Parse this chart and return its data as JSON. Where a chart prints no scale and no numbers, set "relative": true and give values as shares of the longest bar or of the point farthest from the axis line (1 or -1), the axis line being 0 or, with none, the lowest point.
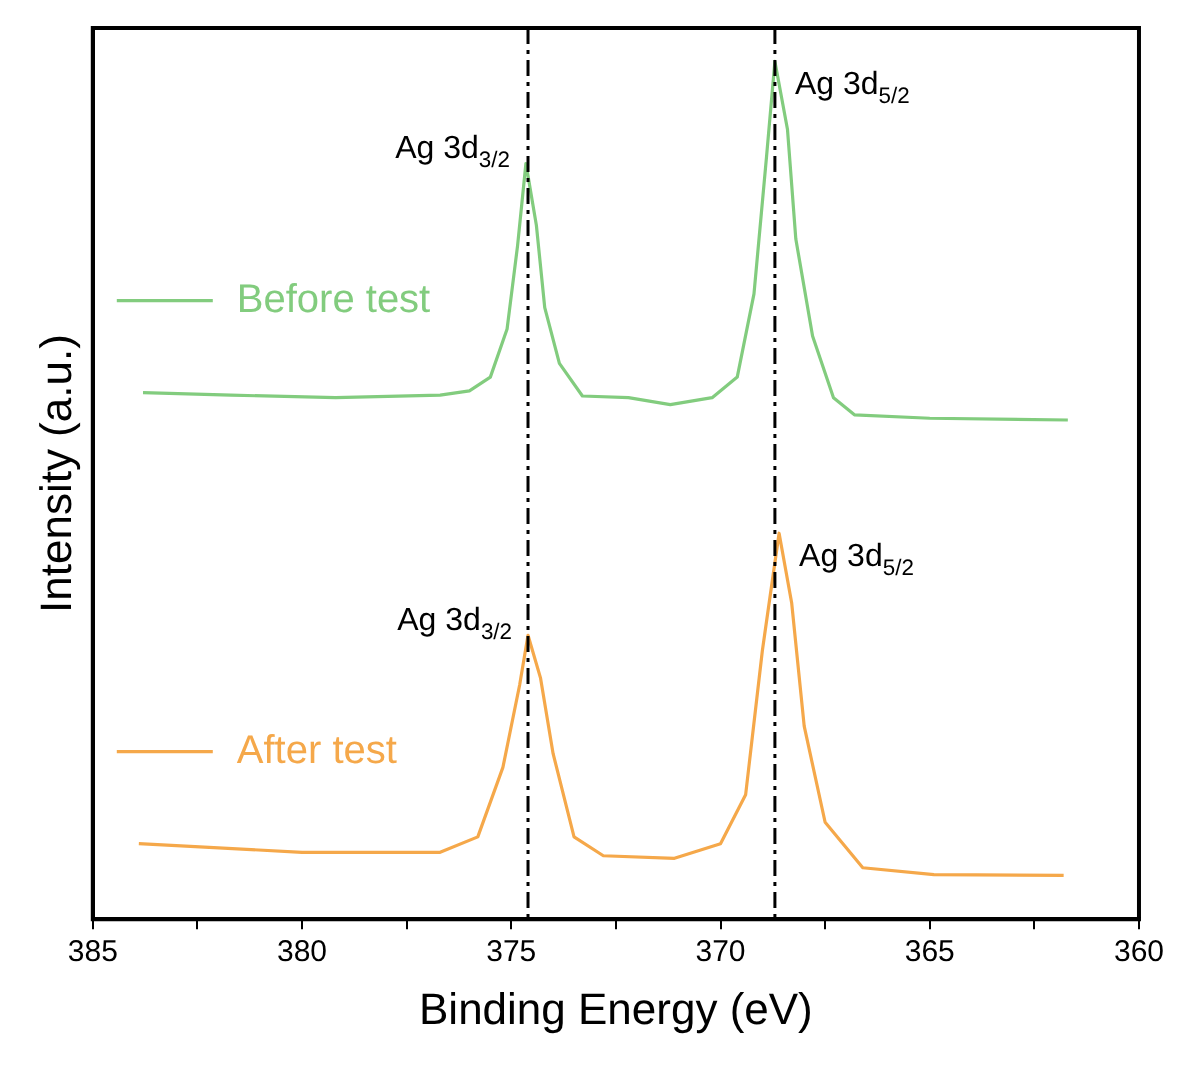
{
  "chart_data": {
    "type": "line",
    "xlabel": "Binding Energy (eV)",
    "ylabel": "Intensity (a.u.)",
    "relative": true,
    "xlim": [
      385,
      360
    ],
    "xticks": [
      385,
      {
        "value": 382.5,
        "label": null
      },
      380,
      {
        "value": 377.5,
        "label": null
      },
      375,
      {
        "value": 372.5,
        "label": null
      },
      370,
      {
        "value": 367.5,
        "label": null
      },
      365,
      {
        "value": 362.5,
        "label": null
      },
      360
    ],
    "grid": false,
    "legend": "left",
    "marker": "none",
    "line_style": "solid",
    "series": [
      {
        "name": "Before test",
        "color": "#82cc7e",
        "x": [
          383.8,
          381.7,
          379.2,
          376.7,
          376.0,
          375.5,
          375.1,
          374.85,
          374.65,
          374.4,
          374.2,
          373.85,
          373.3,
          372.2,
          371.2,
          370.2,
          369.6,
          369.2,
          368.9,
          368.7,
          368.4,
          368.2,
          367.8,
          367.3,
          366.8,
          365.0,
          361.7
        ],
        "values": [
          0.614,
          0.611,
          0.608,
          0.611,
          0.616,
          0.632,
          0.688,
          0.785,
          0.881,
          0.809,
          0.713,
          0.648,
          0.61,
          0.608,
          0.6,
          0.608,
          0.632,
          0.729,
          0.889,
          1.0,
          0.921,
          0.793,
          0.68,
          0.608,
          0.588,
          0.584,
          0.582
        ]
      },
      {
        "name": "After test",
        "color": "#f5a84a",
        "x": [
          383.9,
          380.0,
          376.7,
          375.8,
          375.2,
          374.8,
          374.6,
          374.3,
          374.0,
          373.5,
          372.8,
          371.1,
          370.0,
          369.4,
          369.0,
          368.6,
          368.3,
          368.0,
          367.5,
          366.6,
          364.9,
          361.8
        ],
        "values": [
          0.088,
          0.078,
          0.078,
          0.096,
          0.177,
          0.273,
          0.331,
          0.281,
          0.193,
          0.096,
          0.074,
          0.071,
          0.088,
          0.145,
          0.313,
          0.45,
          0.369,
          0.225,
          0.113,
          0.06,
          0.052,
          0.051
        ]
      }
    ],
    "ref_lines": [
      {
        "axis": "x",
        "value": 374.6,
        "color": "#000000",
        "line_style": "dashdot"
      },
      {
        "axis": "x",
        "value": 368.7,
        "color": "#000000",
        "line_style": "dashdot"
      }
    ],
    "annotations": [
      {
        "text": "Ag 3d$_{3/2}$",
        "x": 374.65,
        "y": 0.881
      },
      {
        "text": "Ag 3d$_{5/2}$",
        "x": 368.7,
        "y": 1.0
      },
      {
        "text": "Ag 3d$_{3/2}$",
        "x": 374.6,
        "y": 0.331
      },
      {
        "text": "Ag 3d$_{5/2}$",
        "x": 368.6,
        "y": 0.45
      }
    ]
  }
}
